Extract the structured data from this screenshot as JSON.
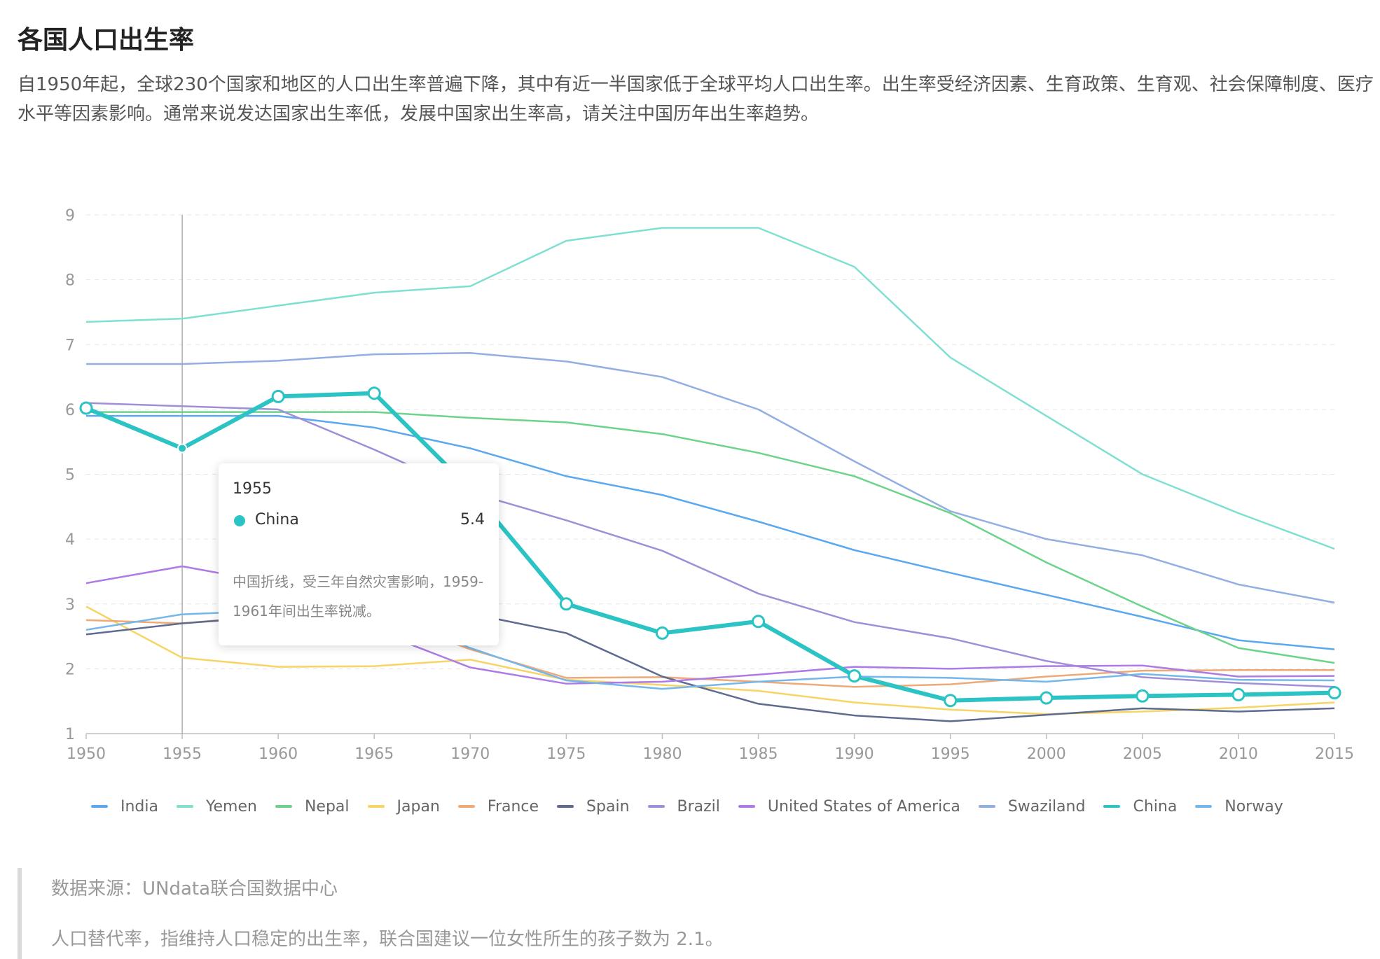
{
  "title": "各国人口出生率",
  "description": "自1950年起，全球230个国家和地区的人口出生率普遍下降，其中有近一半国家低于全球平均人口出生率。出生率受经济因素、生育政策、生育观、社会保障制度、医疗水平等因素影响。通常来说发达国家出生率低，发展中国家出生率高，请关注中国历年出生率趋势。",
  "tooltip": {
    "title": "1955",
    "series": "China",
    "value": "5.4",
    "note": "中国折线，受三年自然灾害影响，1959-1961年间出生率锐减。"
  },
  "footnote": {
    "source": "数据来源：UNdata联合国数据中心",
    "note": "人口替代率，指维持人口稳定的出生率，联合国建议一位女性所生的孩子数为 2.1。"
  },
  "chart_data": {
    "type": "line",
    "x": [
      1950,
      1955,
      1960,
      1965,
      1970,
      1975,
      1980,
      1985,
      1990,
      1995,
      2000,
      2005,
      2010,
      2015
    ],
    "ylim": [
      1,
      9
    ],
    "yticks": [
      1,
      2,
      3,
      4,
      5,
      6,
      7,
      8,
      9
    ],
    "grid": true,
    "legend_position": "bottom",
    "highlight_x": 1955,
    "series": [
      {
        "name": "India",
        "color": "#5aa8f0",
        "values": [
          5.9,
          5.9,
          5.9,
          5.72,
          5.4,
          4.97,
          4.68,
          4.27,
          3.83,
          3.48,
          3.14,
          2.8,
          2.44,
          2.3
        ]
      },
      {
        "name": "Yemen",
        "color": "#7fe0d2",
        "values": [
          7.35,
          7.4,
          7.6,
          7.8,
          7.9,
          8.6,
          8.8,
          8.8,
          8.2,
          6.8,
          5.9,
          5.0,
          4.4,
          3.85
        ]
      },
      {
        "name": "Nepal",
        "color": "#6cd38a",
        "values": [
          5.96,
          5.96,
          5.96,
          5.96,
          5.87,
          5.8,
          5.62,
          5.33,
          4.97,
          4.4,
          3.64,
          2.96,
          2.32,
          2.09
        ]
      },
      {
        "name": "Japan",
        "color": "#f7d466",
        "values": [
          2.96,
          2.17,
          2.03,
          2.04,
          2.14,
          1.83,
          1.75,
          1.66,
          1.48,
          1.37,
          1.3,
          1.34,
          1.4,
          1.48
        ]
      },
      {
        "name": "France",
        "color": "#eea979",
        "values": [
          2.75,
          2.7,
          2.83,
          2.83,
          2.3,
          1.86,
          1.87,
          1.8,
          1.72,
          1.76,
          1.88,
          1.97,
          1.98,
          1.98
        ]
      },
      {
        "name": "Spain",
        "color": "#5c6b8f",
        "values": [
          2.53,
          2.7,
          2.81,
          2.84,
          2.85,
          2.55,
          1.88,
          1.46,
          1.28,
          1.19,
          1.29,
          1.39,
          1.34,
          1.39
        ]
      },
      {
        "name": "Brazil",
        "color": "#a08fd8",
        "values": [
          6.1,
          6.05,
          6.0,
          5.38,
          4.72,
          4.29,
          3.82,
          3.16,
          2.72,
          2.47,
          2.12,
          1.87,
          1.78,
          1.72
        ]
      },
      {
        "name": "United States of America",
        "color": "#ae7ae5",
        "values": [
          3.32,
          3.58,
          3.31,
          2.59,
          2.02,
          1.77,
          1.8,
          1.91,
          2.03,
          2.0,
          2.04,
          2.05,
          1.88,
          1.89
        ]
      },
      {
        "name": "Swaziland",
        "color": "#93aee3",
        "values": [
          6.7,
          6.7,
          6.75,
          6.85,
          6.87,
          6.74,
          6.5,
          6.0,
          5.2,
          4.43,
          4.0,
          3.75,
          3.3,
          3.02
        ]
      },
      {
        "name": "China",
        "color": "#2bc3c3",
        "values": [
          6.02,
          5.4,
          6.2,
          6.25,
          4.77,
          3.0,
          2.55,
          2.73,
          1.89,
          1.51,
          1.55,
          1.58,
          1.6,
          1.63
        ]
      },
      {
        "name": "Norway",
        "color": "#74b7ea",
        "values": [
          2.6,
          2.84,
          2.9,
          2.93,
          2.32,
          1.82,
          1.69,
          1.8,
          1.88,
          1.86,
          1.8,
          1.92,
          1.83,
          1.82
        ]
      }
    ]
  }
}
